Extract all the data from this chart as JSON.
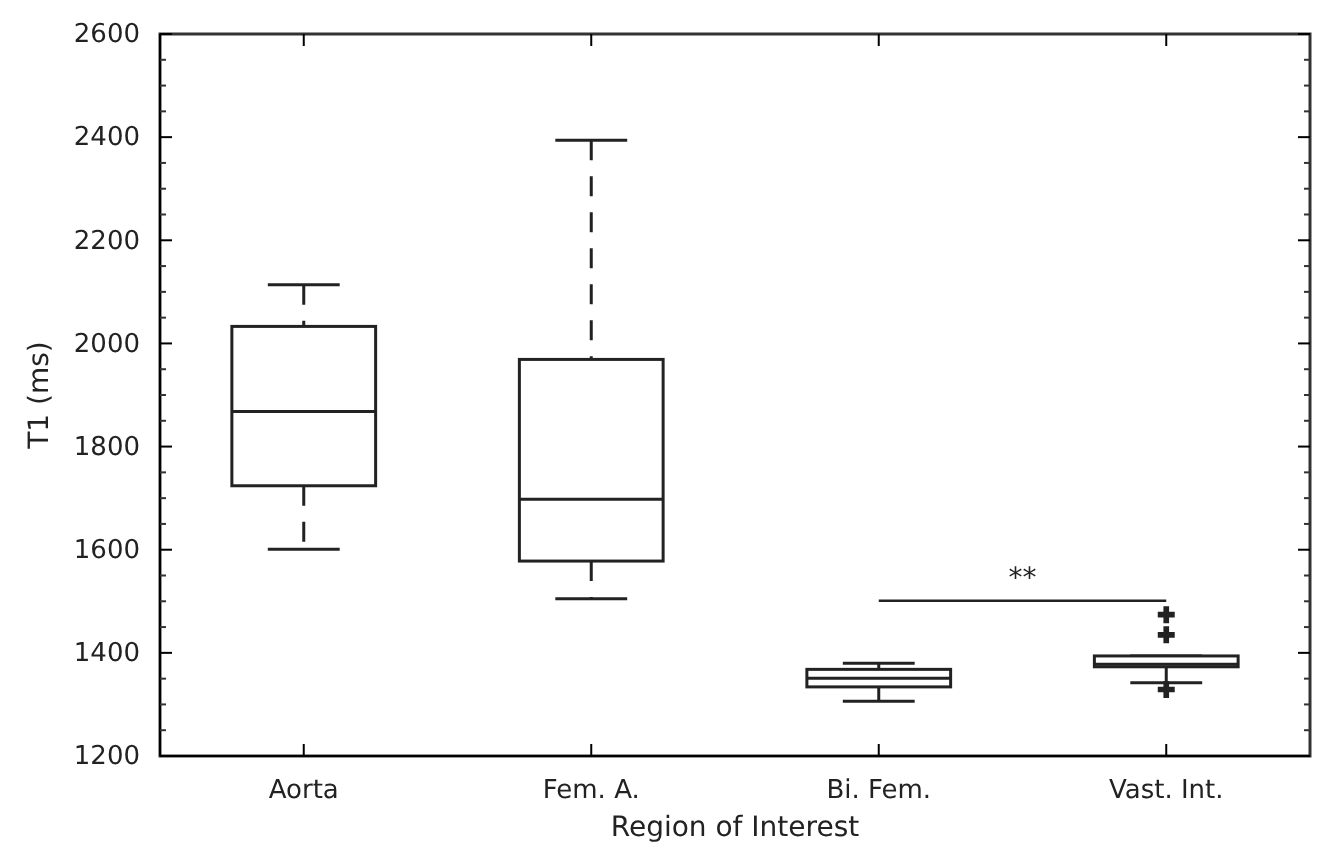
{
  "chart_data": {
    "type": "box",
    "xlabel": "Region of Interest",
    "ylabel": "T1 (ms)",
    "categories": [
      "Aorta",
      "Fem. A.",
      "Bi. Fem.",
      "Vast. Int."
    ],
    "boxes": [
      {
        "low": 1601,
        "q1": 1724,
        "median": 1868,
        "q3": 2033,
        "high": 2114
      },
      {
        "low": 1505,
        "q1": 1578,
        "median": 1698,
        "q3": 1969,
        "high": 2394
      },
      {
        "low": 1306,
        "q1": 1334,
        "median": 1351,
        "q3": 1368,
        "high": 1380
      },
      {
        "low": 1342,
        "q1": 1373,
        "median": 1378,
        "q3": 1394,
        "high": 1394,
        "outliers": [
          1474,
          1435,
          1329
        ]
      }
    ],
    "ylim": [
      1200,
      2600
    ],
    "yticks": [
      1200,
      1400,
      1600,
      1800,
      2000,
      2200,
      2400,
      2600
    ],
    "color": "#222222",
    "line_style": "dashed",
    "grid": false,
    "annotations": [
      "**"
    ]
  }
}
